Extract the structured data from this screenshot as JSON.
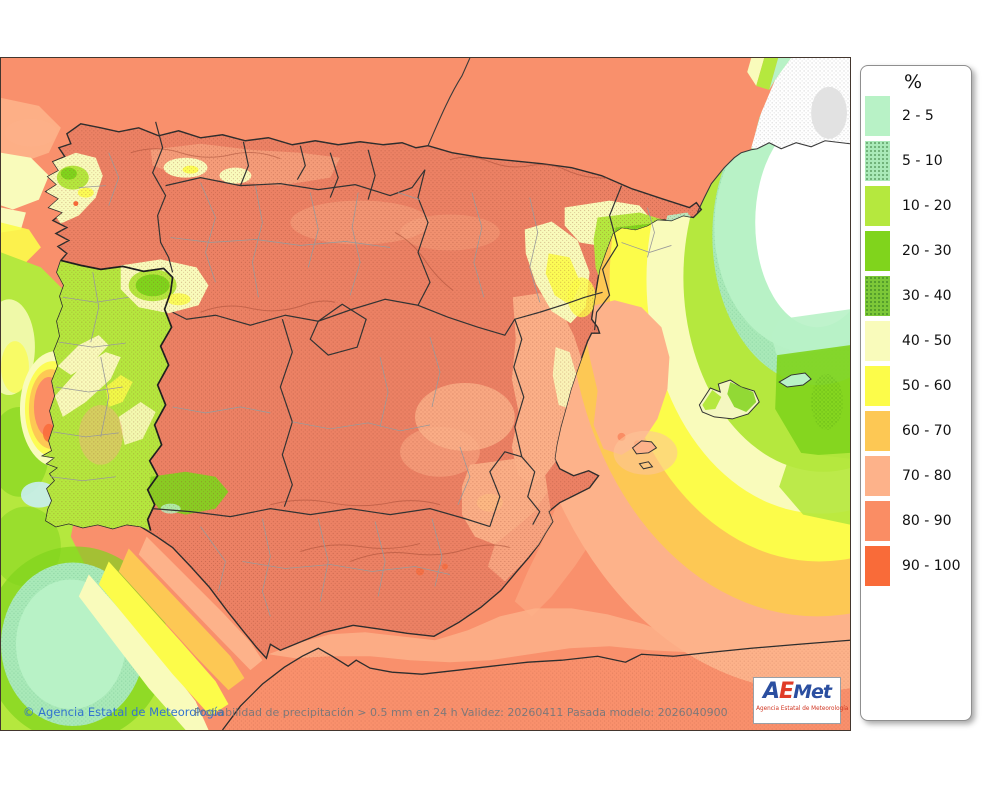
{
  "page": {
    "background": "#ffffff"
  },
  "map": {
    "palette": {
      "sea_high": "#f9906c",
      "land_high": "#ec8164",
      "light_salmon": "#fdb28a",
      "orange": "#fdc854",
      "yellow": "#fcfc4a",
      "pale_yellow": "#f9fbbb",
      "yellow_green": "#b5e83e",
      "green": "#80d41c",
      "dark_green": "#6fbc2a",
      "mint": "#b8f2c6",
      "mint_textured": "#a9e9b8",
      "white_low": "#ffffff",
      "no_data_gray": "#e2e2e2"
    }
  },
  "legend": {
    "title": "%",
    "items": [
      {
        "label": "2 - 5",
        "color": "#b8f2c6",
        "textured": false
      },
      {
        "label": "5 - 10",
        "color": "#a9e9b8",
        "textured": true
      },
      {
        "label": "10 - 20",
        "color": "#b5e83e",
        "textured": false
      },
      {
        "label": "20 - 30",
        "color": "#80d41c",
        "textured": false
      },
      {
        "label": "30 - 40",
        "color": "#7cc838",
        "textured": true
      },
      {
        "label": "40 - 50",
        "color": "#f9fbbb",
        "textured": false
      },
      {
        "label": "50 - 60",
        "color": "#fcfc4a",
        "textured": false
      },
      {
        "label": "60 - 70",
        "color": "#fdc854",
        "textured": false
      },
      {
        "label": "70 - 80",
        "color": "#fdb28a",
        "textured": false
      },
      {
        "label": "80 - 90",
        "color": "#fa8d64",
        "textured": false
      },
      {
        "label": "90 - 100",
        "color": "#f96b39",
        "textured": false
      }
    ]
  },
  "footer": {
    "copyright": "© Agencia Estatal de Meteorología",
    "description": "Probabilidad de precipitación > 0.5 mm en 24 h Validez: 20260411 Pasada modelo: 2026040900"
  },
  "logo": {
    "a": "A",
    "e": "E",
    "met": "Met",
    "subtitle": "Agencia Estatal de Meteorología"
  }
}
